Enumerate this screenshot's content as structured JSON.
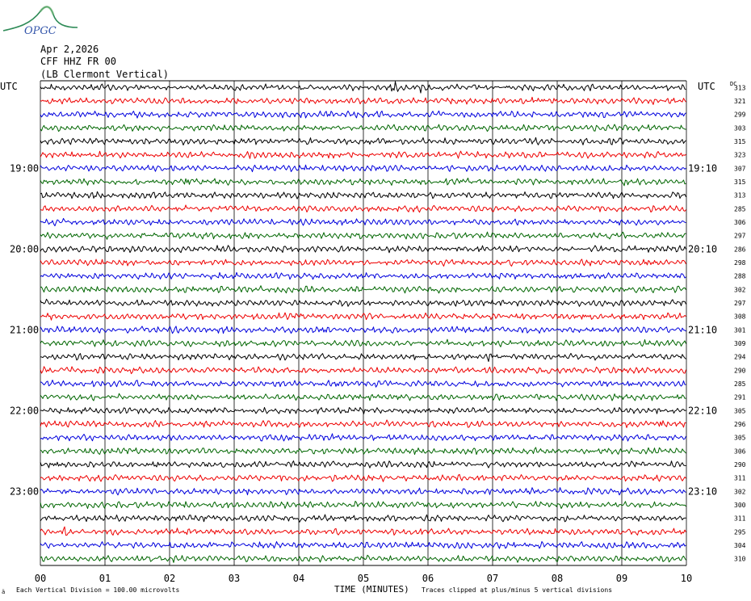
{
  "header": {
    "date": "Apr 2,2026",
    "station": "CFF HHZ FR 00",
    "location": "(LB  Clermont Vertical)"
  },
  "logo": {
    "text": "OPGC"
  },
  "labels": {
    "utc_left": "UTC",
    "utc_right": "UTC",
    "dc": "DC",
    "x_axis_title": "TIME (MINUTES)",
    "scale_note": "Each Vertical Division =  100.00 microvolts",
    "clip_note": "Traces clipped at plus/minus 5 vertical divisions",
    "corner_mark": "ä"
  },
  "chart_data": {
    "type": "line",
    "xlabel": "TIME (MINUTES)",
    "x_ticks": [
      "00",
      "01",
      "02",
      "03",
      "04",
      "05",
      "06",
      "07",
      "08",
      "09",
      "10"
    ],
    "xlim": [
      0,
      10
    ],
    "left_hour_labels": [
      {
        "row": 6,
        "text": "19:00"
      },
      {
        "row": 12,
        "text": "20:00"
      },
      {
        "row": 18,
        "text": "21:00"
      },
      {
        "row": 24,
        "text": "22:00"
      },
      {
        "row": 30,
        "text": "23:00"
      }
    ],
    "right_time_labels": [
      {
        "row": 6,
        "text": "19:10"
      },
      {
        "row": 12,
        "text": "20:10"
      },
      {
        "row": 18,
        "text": "21:10"
      },
      {
        "row": 24,
        "text": "22:10"
      },
      {
        "row": 30,
        "text": "23:10"
      }
    ],
    "trace_colors": [
      "#000000",
      "#ee0000",
      "#0000dd",
      "#006600"
    ],
    "dc_values": [
      "313",
      "321",
      "299",
      "303",
      "315",
      "323",
      "307",
      "315",
      "313",
      "285",
      "306",
      "297",
      "286",
      "298",
      "288",
      "302",
      "297",
      "308",
      "301",
      "309",
      "294",
      "290",
      "285",
      "291",
      "305",
      "296",
      "305",
      "306",
      "290",
      "311",
      "302",
      "300",
      "311",
      "295",
      "304",
      "310"
    ],
    "events": [
      {
        "row": 0,
        "minute": 5.5,
        "amp": 9
      },
      {
        "row": 0,
        "minute": 5.9,
        "amp": 8
      },
      {
        "row": 0,
        "minute": 8.65,
        "amp": 6
      },
      {
        "row": 2,
        "minute": 8.75,
        "amp": 5
      },
      {
        "row": 5,
        "minute": 3.2,
        "amp": 6
      },
      {
        "row": 5,
        "minute": 8.35,
        "amp": 6
      },
      {
        "row": 5,
        "minute": 7.6,
        "amp": 4
      },
      {
        "row": 7,
        "minute": 2.25,
        "amp": 5
      },
      {
        "row": 7,
        "minute": 9.05,
        "amp": 6
      },
      {
        "row": 8,
        "minute": 9.8,
        "amp": 4
      },
      {
        "row": 11,
        "minute": 7.15,
        "amp": 5
      },
      {
        "row": 11,
        "minute": 8.8,
        "amp": 6
      },
      {
        "row": 20,
        "minute": 6.98,
        "amp": 12
      },
      {
        "row": 23,
        "minute": 6.95,
        "amp": 5
      },
      {
        "row": 25,
        "minute": 9.6,
        "amp": 5
      },
      {
        "row": 25,
        "minute": 5.4,
        "amp": 4
      },
      {
        "row": 32,
        "minute": 2.35,
        "amp": 4
      },
      {
        "row": 33,
        "minute": 0.38,
        "amp": 9
      },
      {
        "row": 32,
        "minute": 2.6,
        "amp": 4
      }
    ]
  }
}
